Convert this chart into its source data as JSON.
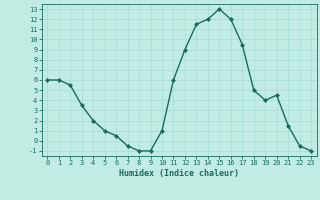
{
  "x": [
    0,
    1,
    2,
    3,
    4,
    5,
    6,
    7,
    8,
    9,
    10,
    11,
    12,
    13,
    14,
    15,
    16,
    17,
    18,
    19,
    20,
    21,
    22,
    23
  ],
  "y": [
    6,
    6,
    5.5,
    3.5,
    2,
    1,
    0.5,
    -0.5,
    -1,
    -1,
    1,
    6,
    9,
    11.5,
    12,
    13,
    12,
    9.5,
    5,
    4,
    4.5,
    1.5,
    -0.5,
    -1
  ],
  "line_color": "#1a6b5a",
  "marker": "D",
  "marker_size": 2,
  "bg_color": "#c0ece4",
  "grid_color": "#a8dcd4",
  "xlabel": "Humidex (Indice chaleur)",
  "xlabel_fontsize": 6,
  "yticks": [
    -1,
    0,
    1,
    2,
    3,
    4,
    5,
    6,
    7,
    8,
    9,
    10,
    11,
    12,
    13
  ],
  "xticks": [
    0,
    1,
    2,
    3,
    4,
    5,
    6,
    7,
    8,
    9,
    10,
    11,
    12,
    13,
    14,
    15,
    16,
    17,
    18,
    19,
    20,
    21,
    22,
    23
  ],
  "ylim": [
    -1.5,
    13.5
  ],
  "xlim": [
    -0.5,
    23.5
  ],
  "tick_fontsize": 5,
  "line_width": 1.0
}
